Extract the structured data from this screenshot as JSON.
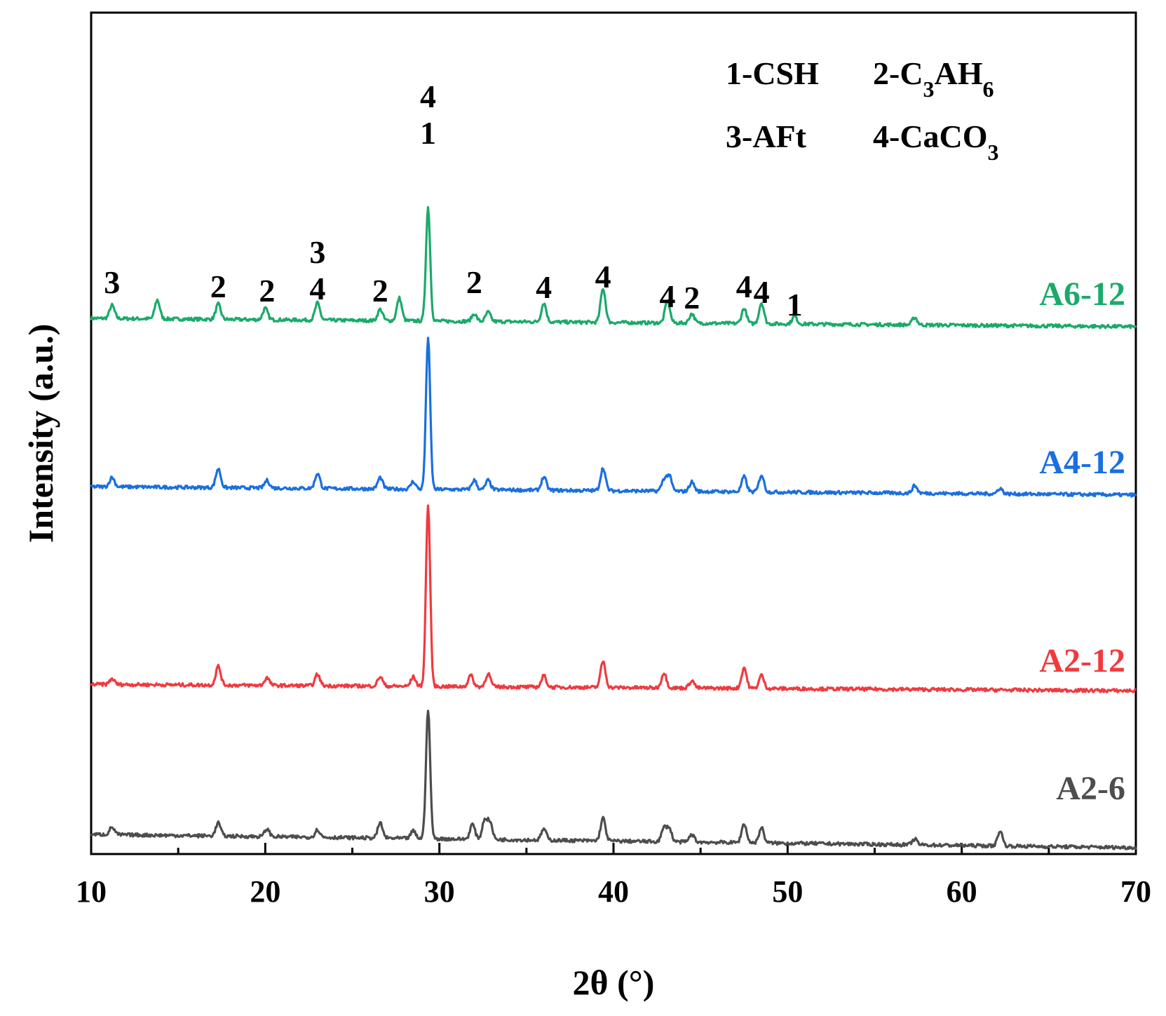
{
  "chart_data": {
    "type": "line",
    "title": "",
    "xlabel": "2θ (°)",
    "ylabel": "Intensity (a.u.)",
    "xlim": [
      10,
      70
    ],
    "x_ticks": [
      "10",
      "20",
      "30",
      "40",
      "50",
      "60",
      "70"
    ],
    "y_ticks": "none (arbitrary units)",
    "grid": false,
    "legend": {
      "placement": "top-right",
      "entries": [
        {
          "num": "1-",
          "text": "CSH"
        },
        {
          "num": "2-",
          "text": "C",
          "sub1": "3",
          "mid": "AH",
          "sub2": "6"
        },
        {
          "num": "3-",
          "text": "AFt"
        },
        {
          "num": "4-",
          "text": "CaCO",
          "sub1": "3"
        }
      ]
    },
    "series": [
      {
        "name": "A6-12",
        "color": "#1aaa6a",
        "baseline": [
          0.57,
          0.35
        ],
        "peaks": [
          [
            11.2,
            0.35
          ],
          [
            13.8,
            0.5
          ],
          [
            17.3,
            0.4
          ],
          [
            20.0,
            0.3
          ],
          [
            23.0,
            0.45
          ],
          [
            26.6,
            0.3
          ],
          [
            27.7,
            0.6
          ],
          [
            29.35,
            3.0
          ],
          [
            32.0,
            0.2
          ],
          [
            32.8,
            0.25
          ],
          [
            36.0,
            0.5
          ],
          [
            39.4,
            0.9
          ],
          [
            43.1,
            0.6
          ],
          [
            44.5,
            0.25
          ],
          [
            47.5,
            0.4
          ],
          [
            48.5,
            0.55
          ],
          [
            50.4,
            0.2
          ],
          [
            57.3,
            0.2
          ]
        ]
      },
      {
        "name": "A4-12",
        "color": "#1a6fe0",
        "baseline": [
          0.57,
          0.35
        ],
        "peaks": [
          [
            11.2,
            0.25
          ],
          [
            17.3,
            0.5
          ],
          [
            20.1,
            0.2
          ],
          [
            23.0,
            0.4
          ],
          [
            26.6,
            0.3
          ],
          [
            28.5,
            0.2
          ],
          [
            29.35,
            4.0
          ],
          [
            32.0,
            0.25
          ],
          [
            32.8,
            0.25
          ],
          [
            36.0,
            0.35
          ],
          [
            39.4,
            0.6
          ],
          [
            42.9,
            0.3
          ],
          [
            43.2,
            0.4
          ],
          [
            44.5,
            0.25
          ],
          [
            47.5,
            0.4
          ],
          [
            48.5,
            0.45
          ],
          [
            57.3,
            0.2
          ],
          [
            62.2,
            0.15
          ]
        ]
      },
      {
        "name": "A2-12",
        "color": "#f03a3e",
        "baseline": [
          0.42,
          0.25
        ],
        "peaks": [
          [
            11.2,
            0.15
          ],
          [
            17.3,
            0.5
          ],
          [
            20.1,
            0.2
          ],
          [
            23.0,
            0.3
          ],
          [
            26.6,
            0.25
          ],
          [
            28.5,
            0.25
          ],
          [
            29.35,
            4.8
          ],
          [
            31.8,
            0.3
          ],
          [
            32.8,
            0.35
          ],
          [
            36.0,
            0.3
          ],
          [
            39.4,
            0.7
          ],
          [
            42.9,
            0.4
          ],
          [
            44.5,
            0.2
          ],
          [
            47.5,
            0.55
          ],
          [
            48.5,
            0.35
          ]
        ]
      },
      {
        "name": "A2-6",
        "color": "#4d4d4d",
        "baseline": [
          0.45,
          0.1
        ],
        "peaks": [
          [
            11.2,
            0.2
          ],
          [
            17.3,
            0.35
          ],
          [
            20.1,
            0.2
          ],
          [
            23.0,
            0.2
          ],
          [
            26.6,
            0.4
          ],
          [
            28.5,
            0.2
          ],
          [
            29.35,
            3.4
          ],
          [
            31.9,
            0.4
          ],
          [
            32.6,
            0.5
          ],
          [
            32.9,
            0.45
          ],
          [
            36.0,
            0.3
          ],
          [
            39.4,
            0.6
          ],
          [
            42.9,
            0.35
          ],
          [
            43.2,
            0.35
          ],
          [
            44.5,
            0.2
          ],
          [
            47.5,
            0.5
          ],
          [
            48.5,
            0.4
          ],
          [
            57.3,
            0.15
          ],
          [
            62.2,
            0.4
          ]
        ]
      }
    ],
    "peak_annotations": [
      {
        "x": 11.2,
        "lines": [
          "3"
        ]
      },
      {
        "x": 17.3,
        "lines": [
          "2"
        ]
      },
      {
        "x": 20.1,
        "lines": [
          "2"
        ]
      },
      {
        "x": 23.0,
        "lines": [
          "3",
          "4"
        ]
      },
      {
        "x": 26.6,
        "lines": [
          "2"
        ]
      },
      {
        "x": 29.35,
        "lines": [
          "4",
          "1"
        ]
      },
      {
        "x": 32.0,
        "lines": [
          "2"
        ]
      },
      {
        "x": 36.0,
        "lines": [
          "4"
        ]
      },
      {
        "x": 39.4,
        "lines": [
          "4"
        ]
      },
      {
        "x": 43.1,
        "lines": [
          "4"
        ]
      },
      {
        "x": 44.5,
        "lines": [
          "2"
        ]
      },
      {
        "x": 47.5,
        "lines": [
          "4"
        ]
      },
      {
        "x": 48.5,
        "lines": [
          "4"
        ]
      },
      {
        "x": 50.4,
        "lines": [
          "1"
        ]
      }
    ]
  }
}
